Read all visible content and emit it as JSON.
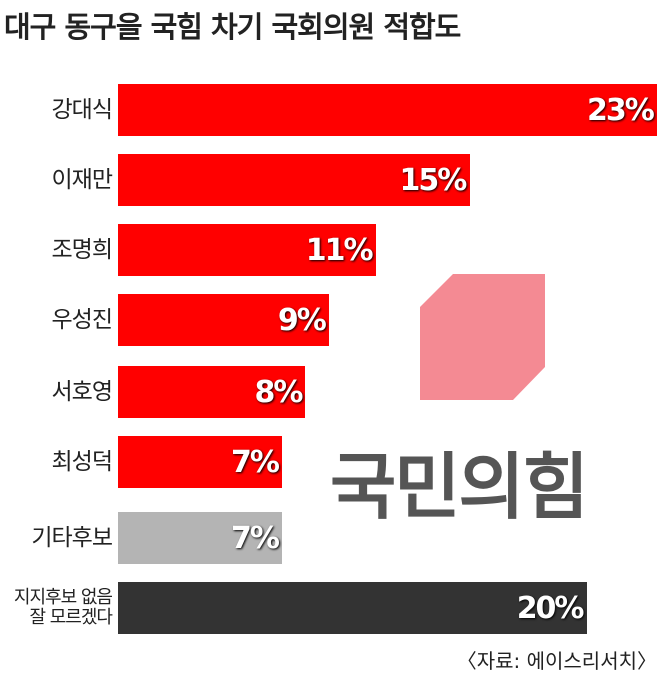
{
  "chart_data": {
    "type": "bar",
    "orientation": "horizontal",
    "title": "대구 동구을 국힘 차기 국회의원 적합도",
    "categories": [
      "강대식",
      "이재만",
      "조명희",
      "우성진",
      "서호영",
      "최성덕",
      "기타후보",
      "지지후보 없음\n잘 모르겠다"
    ],
    "values": [
      23,
      15,
      11,
      9,
      8,
      7,
      7,
      20
    ],
    "value_labels": [
      "23%",
      "15%",
      "11%",
      "9%",
      "8%",
      "7%",
      "7%",
      "20%"
    ],
    "colors": [
      "#ff0000",
      "#ff0000",
      "#ff0000",
      "#ff0000",
      "#ff0000",
      "#ff0000",
      "#b4b4b4",
      "#333333"
    ],
    "logo_text": "국민의힘",
    "source": "〈자료: 에이스리서치〉"
  }
}
